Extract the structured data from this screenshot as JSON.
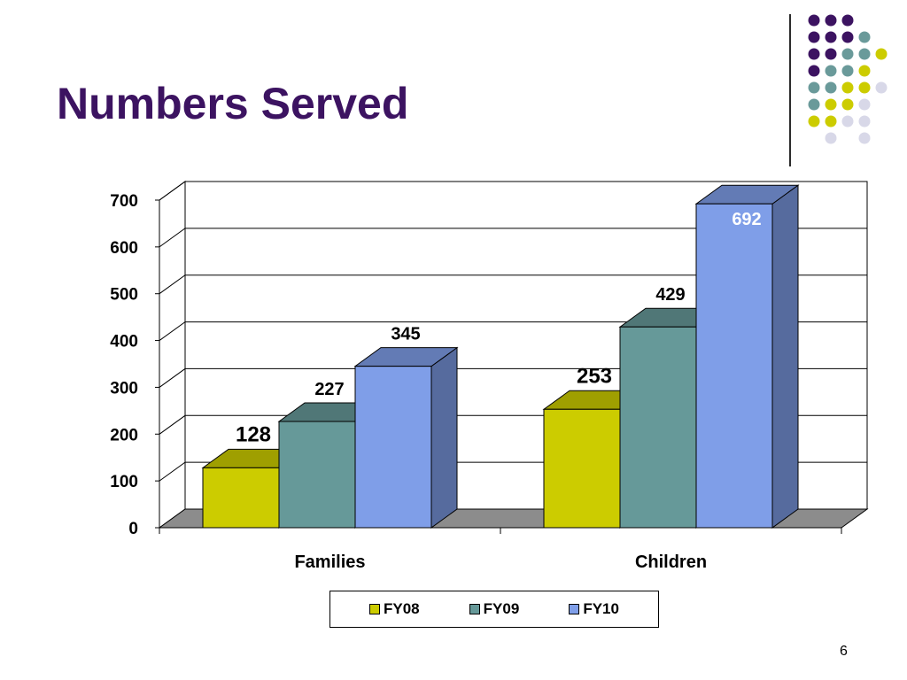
{
  "slide": {
    "title": "Numbers Served",
    "page_number": "6"
  },
  "colors": {
    "title": "#3c1361",
    "purple_dot": "#3c1361",
    "teal_dot": "#6a9a9a",
    "yellow_dot": "#cccc00",
    "lavender_dot": "#d8d8e8",
    "fy08": "#cccc00",
    "fy09": "#669999",
    "fy10": "#7f9ee8",
    "floor": "#8c8c8c"
  },
  "chart_data": {
    "type": "bar",
    "title": "",
    "xlabel": "",
    "ylabel": "",
    "categories": [
      "Families",
      "Children"
    ],
    "series": [
      {
        "name": "FY08",
        "values": [
          128,
          253
        ]
      },
      {
        "name": "FY09",
        "values": [
          227,
          429
        ]
      },
      {
        "name": "FY10",
        "values": [
          345,
          692
        ]
      }
    ],
    "ylim": [
      0,
      700
    ],
    "yticks": [
      0,
      100,
      200,
      300,
      400,
      500,
      600,
      700
    ],
    "grid": true,
    "three_d": true,
    "legend_position": "bottom",
    "data_labels": true
  },
  "decoration": {
    "dot_rows": [
      [
        "purple",
        "purple",
        "purple",
        "none",
        "none"
      ],
      [
        "purple",
        "purple",
        "purple",
        "teal",
        "none"
      ],
      [
        "purple",
        "purple",
        "teal",
        "teal",
        "yellow"
      ],
      [
        "purple",
        "teal",
        "teal",
        "yellow",
        "none"
      ],
      [
        "teal",
        "teal",
        "yellow",
        "yellow",
        "lavender"
      ],
      [
        "teal",
        "yellow",
        "yellow",
        "lavender",
        "none"
      ],
      [
        "yellow",
        "yellow",
        "lavender",
        "lavender",
        "none"
      ],
      [
        "none",
        "lavender",
        "none",
        "lavender",
        "none"
      ]
    ]
  }
}
